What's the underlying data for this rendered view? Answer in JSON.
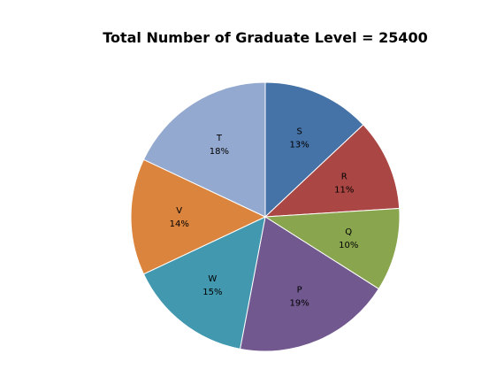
{
  "chart_data": {
    "type": "pie",
    "title": "Total Number of Graduate Level = 25400",
    "start_angle_deg": 0,
    "direction": "clockwise",
    "slices": [
      {
        "label": "S",
        "value": 13,
        "display": "13%",
        "color": "#4572A7"
      },
      {
        "label": "R",
        "value": 11,
        "display": "11%",
        "color": "#AA4643"
      },
      {
        "label": "Q",
        "value": 10,
        "display": "10%",
        "color": "#89A54E"
      },
      {
        "label": "P",
        "value": 19,
        "display": "19%",
        "color": "#71588F"
      },
      {
        "label": "W",
        "value": 15,
        "display": "15%",
        "color": "#4198AF"
      },
      {
        "label": "V",
        "value": 14,
        "display": "14%",
        "color": "#DB843D"
      },
      {
        "label": "T",
        "value": 18,
        "display": "18%",
        "color": "#93A9CF"
      }
    ]
  }
}
